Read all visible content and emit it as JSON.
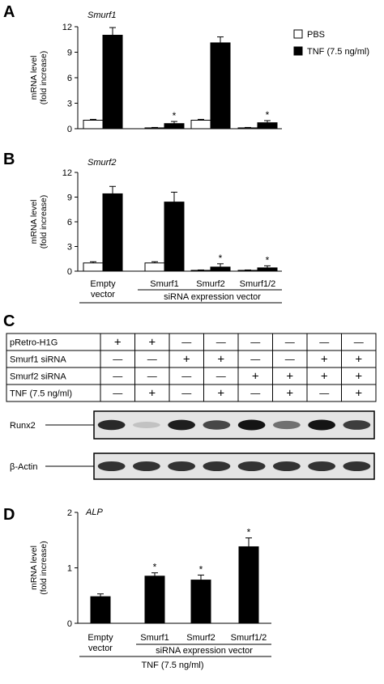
{
  "legend": {
    "items": [
      {
        "label": "PBS",
        "fill": "#ffffff"
      },
      {
        "label": "TNF (7.5 ng/ml)",
        "fill": "#000000"
      }
    ]
  },
  "panel_labels": {
    "A": "A",
    "B": "B",
    "C": "C",
    "D": "D"
  },
  "groups": [
    "Smurf1",
    "Smurf2",
    "Smurf1/2"
  ],
  "axis_label_lines": [
    "mRNA level",
    "(fold increase)"
  ],
  "x_labels_AB": {
    "empty_vector": [
      "Empty",
      "vector"
    ],
    "categories": [
      "Smurf1",
      "Smurf2",
      "Smurf1/2"
    ],
    "group_label": "siRNA expression vector"
  },
  "x_labels_D": {
    "empty_vector": [
      "Empty",
      "vector"
    ],
    "categories": [
      "Smurf1",
      "Smurf2",
      "Smurf1/2"
    ],
    "group_label": "siRNA expression vector",
    "bottom_label": "TNF (7.5 ng/ml)"
  },
  "chart_data": [
    {
      "type": "bar",
      "panel": "A",
      "title": "Smurf1",
      "ylabel": "mRNA level (fold increase)",
      "ylim": [
        0,
        12
      ],
      "yticks": [
        "0",
        "3",
        "6",
        "9",
        "12"
      ],
      "categories": [
        "Empty vector",
        "Smurf1",
        "Smurf2",
        "Smurf1/2"
      ],
      "series": [
        {
          "name": "PBS",
          "color": "#ffffff",
          "values": [
            1.0,
            0.1,
            1.0,
            0.1
          ],
          "errors": [
            0.1,
            0.05,
            0.1,
            0.05
          ]
        },
        {
          "name": "TNF (7.5 ng/ml)",
          "color": "#000000",
          "values": [
            11.0,
            0.6,
            10.1,
            0.7
          ],
          "errors": [
            0.9,
            0.25,
            0.7,
            0.25
          ]
        }
      ],
      "significance": [
        "",
        "*",
        "",
        "*"
      ]
    },
    {
      "type": "bar",
      "panel": "B",
      "title": "Smurf2",
      "ylabel": "mRNA level (fold increase)",
      "ylim": [
        0,
        12
      ],
      "yticks": [
        "0",
        "3",
        "6",
        "9",
        "12"
      ],
      "categories": [
        "Empty vector",
        "Smurf1",
        "Smurf2",
        "Smurf1/2"
      ],
      "series": [
        {
          "name": "PBS",
          "color": "#ffffff",
          "values": [
            1.0,
            1.0,
            0.1,
            0.1
          ],
          "errors": [
            0.15,
            0.15,
            0.05,
            0.05
          ]
        },
        {
          "name": "TNF (7.5 ng/ml)",
          "color": "#000000",
          "values": [
            9.4,
            8.4,
            0.5,
            0.4
          ],
          "errors": [
            0.9,
            1.2,
            0.4,
            0.25
          ]
        }
      ],
      "significance": [
        "",
        "",
        "*",
        "*"
      ]
    },
    {
      "type": "bar",
      "panel": "D",
      "title": "ALP",
      "ylabel": "mRNA level (fold increase)",
      "ylim": [
        0,
        2
      ],
      "yticks": [
        "0",
        "1",
        "2"
      ],
      "categories": [
        "Empty vector",
        "Smurf1",
        "Smurf2",
        "Smurf1/2"
      ],
      "series": [
        {
          "name": "TNF (7.5 ng/ml)",
          "color": "#000000",
          "values": [
            0.48,
            0.85,
            0.78,
            1.38
          ],
          "errors": [
            0.05,
            0.06,
            0.09,
            0.16
          ]
        }
      ],
      "significance": [
        "",
        "*",
        "*",
        "*"
      ]
    }
  ],
  "blot_table": {
    "rows": [
      {
        "label": "pRetro-H1G",
        "cells": [
          "+",
          "+",
          "—",
          "—",
          "—",
          "—",
          "—",
          "—"
        ]
      },
      {
        "label": "Smurf1 siRNA",
        "cells": [
          "—",
          "—",
          "+",
          "+",
          "—",
          "—",
          "+",
          "+"
        ]
      },
      {
        "label": "Smurf2 siRNA",
        "cells": [
          "—",
          "—",
          "—",
          "—",
          "+",
          "+",
          "+",
          "+"
        ]
      },
      {
        "label": "TNF (7.5 ng/ml)",
        "cells": [
          "—",
          "+",
          "—",
          "+",
          "—",
          "+",
          "—",
          "+"
        ]
      }
    ]
  },
  "blots": [
    {
      "label": "Runx2",
      "intensities": [
        0.9,
        0.15,
        0.95,
        0.75,
        1.0,
        0.55,
        1.0,
        0.8
      ]
    },
    {
      "label": "β-Actin",
      "intensities": [
        0.85,
        0.85,
        0.85,
        0.85,
        0.85,
        0.85,
        0.85,
        0.85
      ]
    }
  ]
}
